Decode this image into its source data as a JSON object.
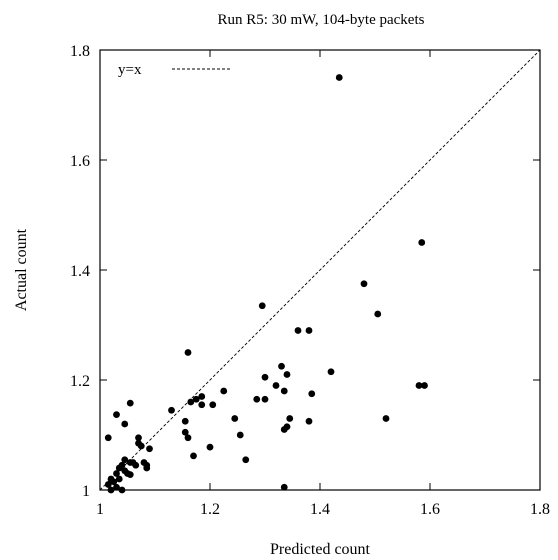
{
  "chart_data": {
    "type": "scatter",
    "title": "Run R5: 30 mW, 104-byte packets",
    "xlabel": "Predicted count",
    "ylabel": "Actual count",
    "xlim": [
      1,
      1.8
    ],
    "ylim": [
      1,
      1.8
    ],
    "xticks": [
      "1",
      "1.2",
      "1.4",
      "1.6",
      "1.8"
    ],
    "yticks": [
      "1",
      "1.2",
      "1.4",
      "1.6",
      "1.8"
    ],
    "grid": false,
    "legend": {
      "position": "top-left",
      "entries": [
        {
          "label": "y=x",
          "style": "dashed line"
        }
      ]
    },
    "reference_line": {
      "label": "y=x",
      "from": [
        1,
        1
      ],
      "to": [
        1.8,
        1.8
      ]
    },
    "series": [
      {
        "marker": "filled circle",
        "color": "#000000",
        "points": [
          [
            1.015,
            1.095
          ],
          [
            1.03,
            1.137
          ],
          [
            1.055,
            1.158
          ],
          [
            1.045,
            1.12
          ],
          [
            1.015,
            1.01
          ],
          [
            1.02,
            1.02
          ],
          [
            1.02,
            1.0
          ],
          [
            1.025,
            1.015
          ],
          [
            1.03,
            1.005
          ],
          [
            1.035,
            1.02
          ],
          [
            1.04,
            1.0
          ],
          [
            1.03,
            1.03
          ],
          [
            1.035,
            1.04
          ],
          [
            1.04,
            1.045
          ],
          [
            1.045,
            1.035
          ],
          [
            1.045,
            1.055
          ],
          [
            1.05,
            1.03
          ],
          [
            1.055,
            1.028
          ],
          [
            1.055,
            1.05
          ],
          [
            1.06,
            1.05
          ],
          [
            1.065,
            1.045
          ],
          [
            1.07,
            1.085
          ],
          [
            1.07,
            1.095
          ],
          [
            1.075,
            1.08
          ],
          [
            1.08,
            1.05
          ],
          [
            1.085,
            1.04
          ],
          [
            1.085,
            1.045
          ],
          [
            1.09,
            1.075
          ],
          [
            1.13,
            1.145
          ],
          [
            1.155,
            1.125
          ],
          [
            1.155,
            1.105
          ],
          [
            1.16,
            1.095
          ],
          [
            1.16,
            1.25
          ],
          [
            1.165,
            1.16
          ],
          [
            1.17,
            1.062
          ],
          [
            1.175,
            1.165
          ],
          [
            1.185,
            1.17
          ],
          [
            1.185,
            1.155
          ],
          [
            1.2,
            1.078
          ],
          [
            1.205,
            1.155
          ],
          [
            1.225,
            1.18
          ],
          [
            1.245,
            1.13
          ],
          [
            1.255,
            1.1
          ],
          [
            1.265,
            1.055
          ],
          [
            1.285,
            1.165
          ],
          [
            1.295,
            1.335
          ],
          [
            1.3,
            1.165
          ],
          [
            1.3,
            1.205
          ],
          [
            1.32,
            1.19
          ],
          [
            1.33,
            1.225
          ],
          [
            1.335,
            1.18
          ],
          [
            1.335,
            1.11
          ],
          [
            1.34,
            1.115
          ],
          [
            1.34,
            1.21
          ],
          [
            1.345,
            1.13
          ],
          [
            1.335,
            1.005
          ],
          [
            1.36,
            1.29
          ],
          [
            1.38,
            1.29
          ],
          [
            1.38,
            1.125
          ],
          [
            1.385,
            1.175
          ],
          [
            1.42,
            1.215
          ],
          [
            1.435,
            1.75
          ],
          [
            1.48,
            1.375
          ],
          [
            1.505,
            1.32
          ],
          [
            1.52,
            1.13
          ],
          [
            1.58,
            1.19
          ],
          [
            1.59,
            1.19
          ],
          [
            1.585,
            1.45
          ]
        ]
      }
    ]
  }
}
